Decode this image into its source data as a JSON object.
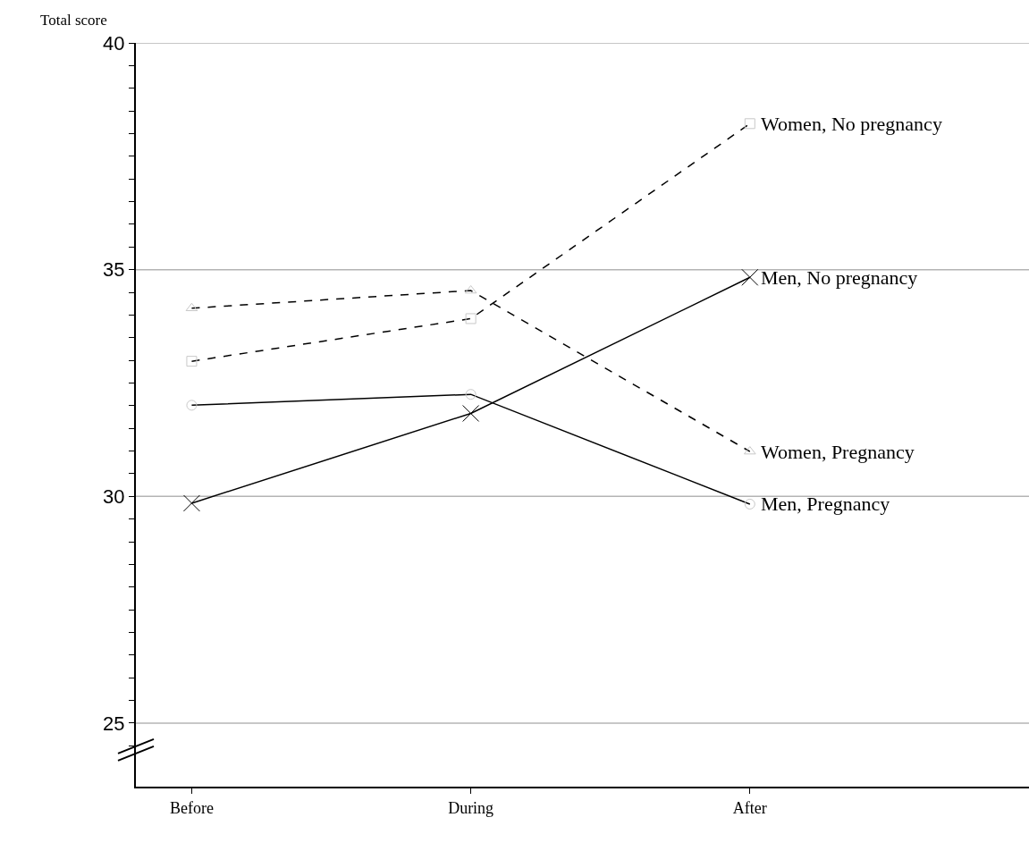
{
  "chart_data": {
    "type": "line",
    "ylabel": "Total score",
    "categories": [
      "Before",
      "During",
      "After"
    ],
    "series": [
      {
        "name": "Women, No pregnancy",
        "color": "#000000",
        "line_style": "dashed",
        "marker": "square",
        "values": [
          32.98,
          33.92,
          38.22
        ]
      },
      {
        "name": "Men, No pregnancy",
        "color": "#000000",
        "line_style": "solid",
        "marker": "cross",
        "values": [
          29.85,
          31.83,
          34.83
        ]
      },
      {
        "name": "Women, Pregnancy",
        "color": "#000000",
        "line_style": "dashed",
        "marker": "triangle",
        "values": [
          34.15,
          34.54,
          30.99
        ]
      },
      {
        "name": "Men, Pregnancy",
        "color": "#000000",
        "line_style": "solid",
        "marker": "circle",
        "values": [
          32.01,
          32.25,
          29.83
        ]
      }
    ],
    "ylim": [
      23.6,
      40
    ],
    "yticks": [
      {
        "value": 24.5,
        "label": null
      },
      25,
      {
        "value": 25.5,
        "label": null
      },
      {
        "value": 26,
        "label": null
      },
      {
        "value": 26.5,
        "label": null
      },
      {
        "value": 27,
        "label": null
      },
      {
        "value": 27.5,
        "label": null
      },
      {
        "value": 28,
        "label": null
      },
      {
        "value": 28.5,
        "label": null
      },
      {
        "value": 29,
        "label": null
      },
      {
        "value": 29.5,
        "label": null
      },
      30,
      {
        "value": 30.5,
        "label": null
      },
      {
        "value": 31,
        "label": null
      },
      {
        "value": 31.5,
        "label": null
      },
      {
        "value": 32,
        "label": null
      },
      {
        "value": 32.5,
        "label": null
      },
      {
        "value": 33,
        "label": null
      },
      {
        "value": 33.5,
        "label": null
      },
      {
        "value": 34,
        "label": null
      },
      {
        "value": 34.5,
        "label": null
      },
      35,
      {
        "value": 35.5,
        "label": null
      },
      {
        "value": 36,
        "label": null
      },
      {
        "value": 36.5,
        "label": null
      },
      {
        "value": 37,
        "label": null
      },
      {
        "value": 37.5,
        "label": null
      },
      {
        "value": 38,
        "label": null
      },
      {
        "value": 38.5,
        "label": null
      },
      {
        "value": 39,
        "label": null
      },
      {
        "value": 39.5,
        "label": null
      },
      40
    ],
    "grid": "y",
    "legend": "right"
  }
}
